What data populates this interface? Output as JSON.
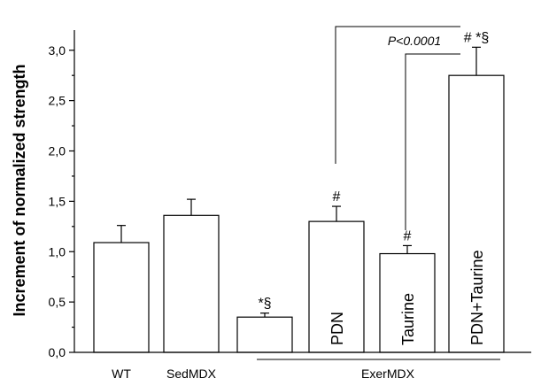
{
  "chart_data": {
    "type": "bar",
    "ylabel": "Increment of normalized strength",
    "ylim": [
      0,
      3.2
    ],
    "yticks": [
      "0,0",
      "0,5",
      "1,0",
      "1,5",
      "2,0",
      "2,5",
      "3,0"
    ],
    "group_label": "ExerMDX",
    "categories": [
      "WT",
      "SedMDX",
      "",
      "PDN",
      "Taurine",
      "PDN+Taurine"
    ],
    "values": [
      1.09,
      1.36,
      0.35,
      1.3,
      0.98,
      2.75
    ],
    "errors": [
      0.17,
      0.16,
      0.04,
      0.15,
      0.08,
      0.28
    ],
    "bar_marks": [
      "",
      "",
      "*§",
      "#",
      "#",
      "# *§"
    ],
    "annotation": "P<0.0001",
    "grid": false
  }
}
